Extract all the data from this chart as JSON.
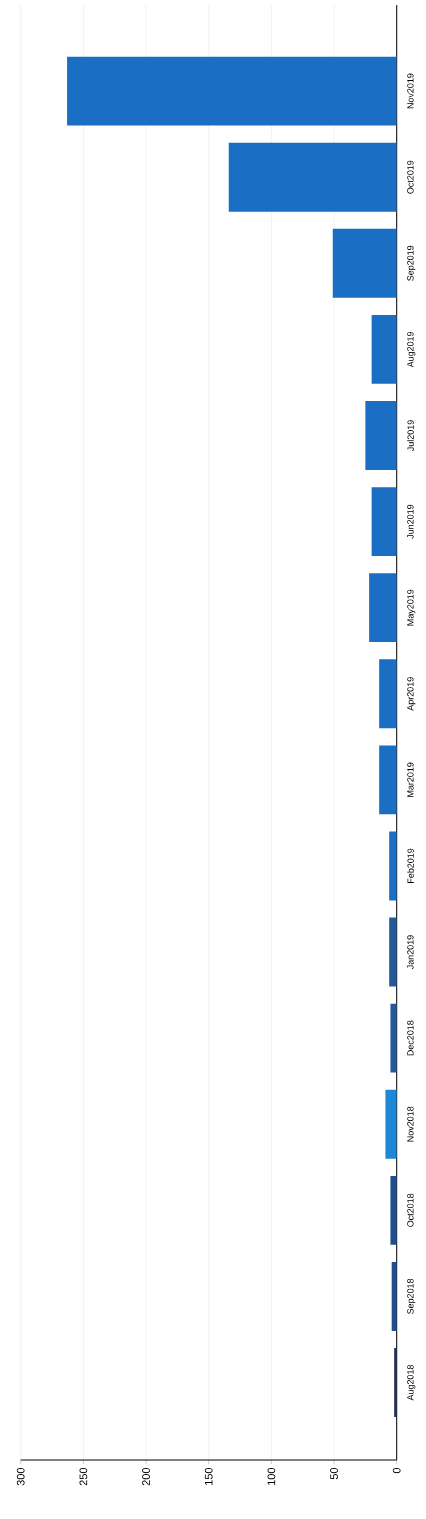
{
  "chart_data": {
    "type": "bar",
    "orientation": "horizontal",
    "categories": [
      "Nov2019",
      "Oct2019",
      "Sep2019",
      "Aug2019",
      "Jul2019",
      "Jun2019",
      "May2019",
      "Apr2019",
      "Mar2019",
      "Feb2019",
      "Jan2019",
      "Dec2018",
      "Nov2018",
      "Oct2018",
      "Sep2018",
      "Aug2018"
    ],
    "values": [
      263,
      134,
      51,
      20,
      25,
      20,
      22,
      14,
      14,
      6,
      6,
      5,
      9,
      5,
      4,
      2
    ],
    "colors": [
      "#1a6fc4",
      "#1a6fc4",
      "#1a6fc4",
      "#1a6fc4",
      "#1a6fc4",
      "#1a6fc4",
      "#1a6fc4",
      "#1a6fc4",
      "#1a6fc4",
      "#1a6fc4",
      "#235a9a",
      "#235a9a",
      "#1e88d8",
      "#1f4f8f",
      "#1f4f8f",
      "#1b2f5e"
    ],
    "xlim": [
      300,
      0
    ],
    "xticks": [
      0,
      50,
      100,
      150,
      200,
      250,
      300
    ],
    "grid": "x"
  }
}
